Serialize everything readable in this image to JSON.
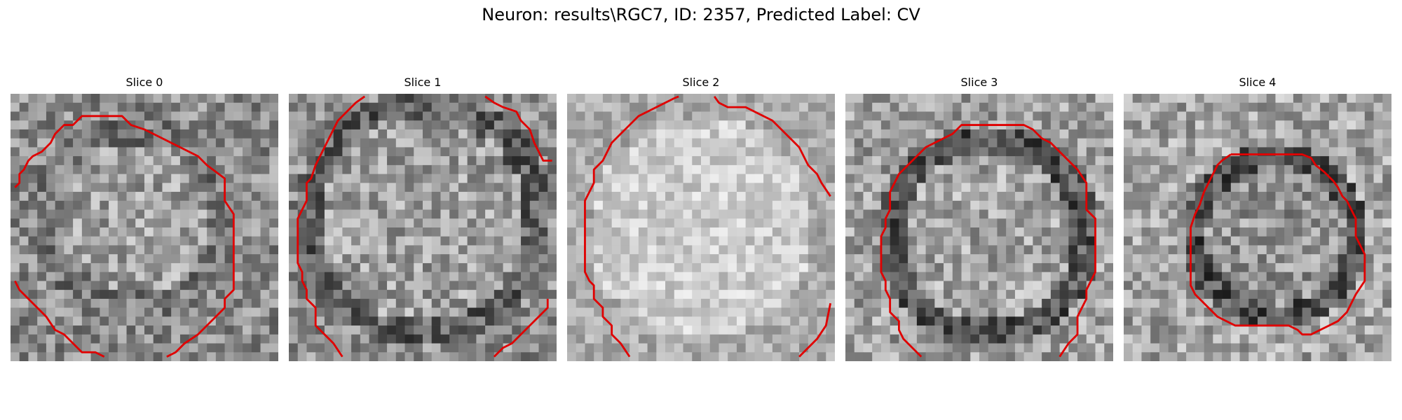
{
  "figure": {
    "title": "Neuron: results\\RGC7, ID: 2357, Predicted Label: CV"
  },
  "panels": [
    {
      "title": "Slice 0"
    },
    {
      "title": "Slice 1"
    },
    {
      "title": "Slice 2"
    },
    {
      "title": "Slice 3"
    },
    {
      "title": "Slice 4"
    }
  ],
  "colors": {
    "contour": "#e00000",
    "background": "#ffffff"
  }
}
